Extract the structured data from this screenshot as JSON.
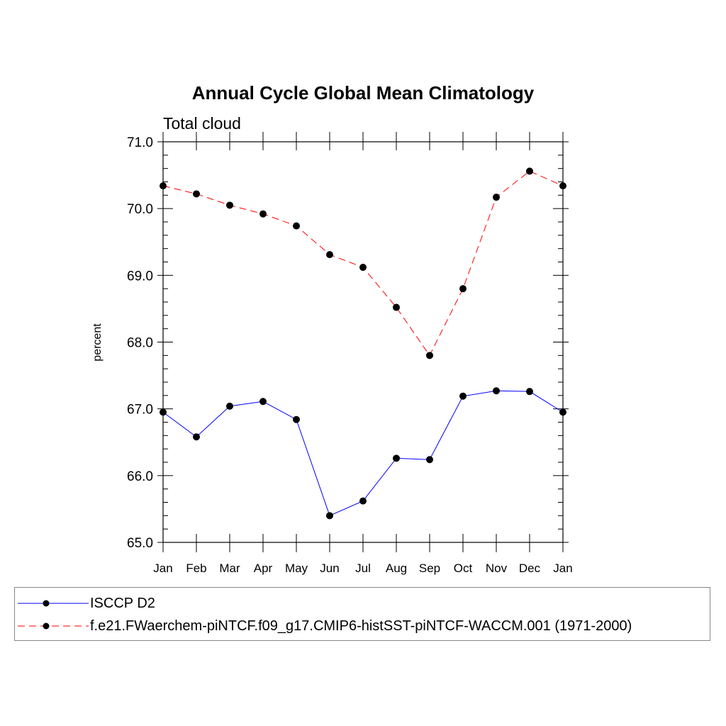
{
  "chart_data": {
    "type": "line",
    "title": "Annual Cycle Global Mean Climatology",
    "subtitle": "Total cloud",
    "xlabel": "",
    "ylabel": "percent",
    "categories": [
      "Jan",
      "Feb",
      "Mar",
      "Apr",
      "May",
      "Jun",
      "Jul",
      "Aug",
      "Sep",
      "Oct",
      "Nov",
      "Dec",
      "Jan"
    ],
    "ylim": [
      65.0,
      71.0
    ],
    "yticks": [
      "65.0",
      "66.0",
      "67.0",
      "68.0",
      "69.0",
      "70.0",
      "71.0"
    ],
    "series": [
      {
        "name": "ISCCP D2",
        "color": "#0000ff",
        "style": "solid",
        "marker": "circle",
        "values": [
          66.95,
          66.58,
          67.04,
          67.11,
          66.84,
          65.4,
          65.62,
          66.26,
          66.24,
          67.19,
          67.27,
          67.26,
          66.95
        ]
      },
      {
        "name": "f.e21.FWaerchem-piNTCF.f09_g17.CMIP6-histSST-piNTCF-WACCM.001 (1971-2000)",
        "color": "#ff0000",
        "style": "dashed",
        "marker": "circle",
        "values": [
          70.34,
          70.22,
          70.05,
          69.92,
          69.74,
          69.31,
          69.12,
          68.52,
          67.8,
          68.8,
          70.17,
          70.56,
          70.34
        ]
      }
    ],
    "legend_position": "bottom"
  }
}
